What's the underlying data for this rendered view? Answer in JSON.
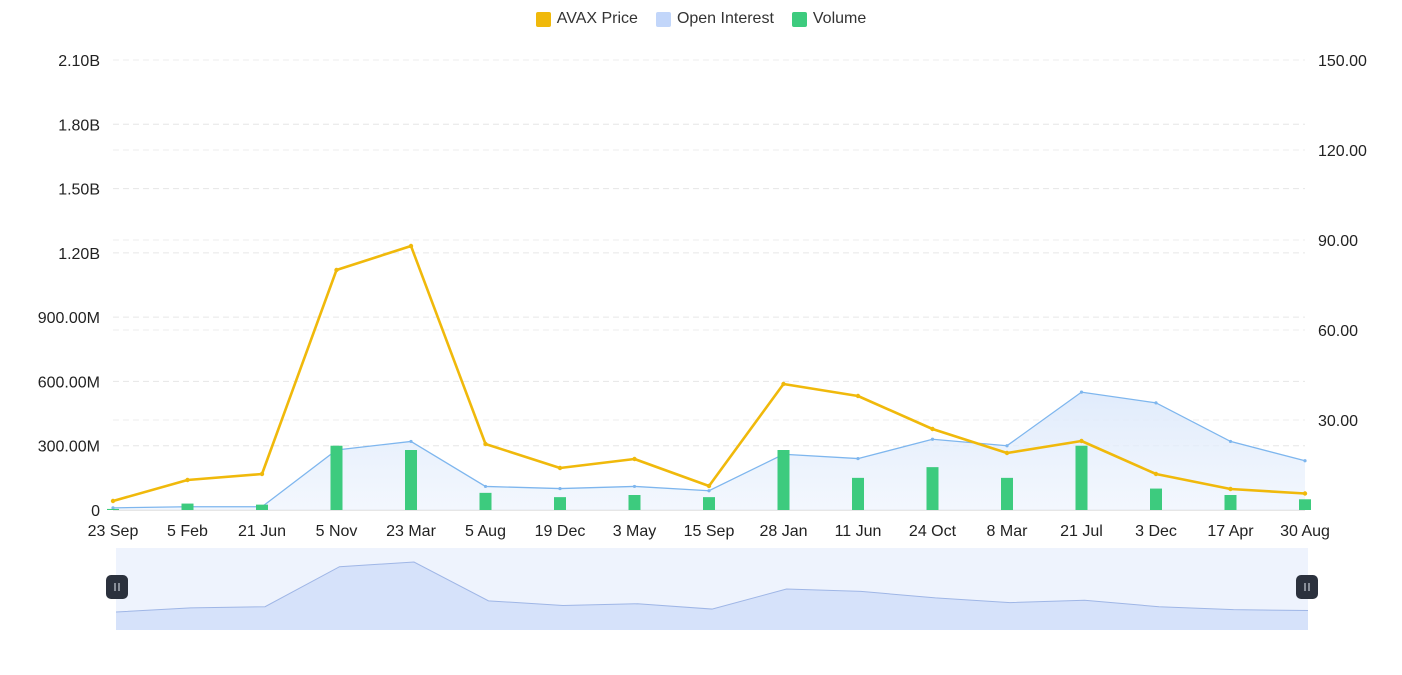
{
  "legend": {
    "items": [
      {
        "label": "AVAX Price",
        "color": "#F0B90B"
      },
      {
        "label": "Open Interest",
        "color": "#C2D6FA"
      },
      {
        "label": "Volume",
        "color": "#3DCB7E"
      }
    ]
  },
  "chart_data": {
    "type": "line",
    "title": "",
    "xlabel": "",
    "ylabel": "",
    "x_ticks": [
      "23 Sep",
      "5 Feb",
      "21 Jun",
      "5 Nov",
      "23 Mar",
      "5 Aug",
      "19 Dec",
      "3 May",
      "15 Sep",
      "28 Jan",
      "11 Jun",
      "24 Oct",
      "8 Mar",
      "21 Jul",
      "3 Dec",
      "17 Apr",
      "30 Aug"
    ],
    "y_left_ticks": [
      "0",
      "300.00M",
      "600.00M",
      "900.00M",
      "1.20B",
      "1.50B",
      "1.80B",
      "2.10B"
    ],
    "y_left_range": [
      0,
      2100000000
    ],
    "y_right_ticks": [
      "30.00",
      "60.00",
      "90.00",
      "120.00",
      "150.00"
    ],
    "y_right_range": [
      0,
      150
    ],
    "legend_position": "top-center",
    "grid": true,
    "series": [
      {
        "name": "AVAX Price",
        "axis": "right",
        "color": "#F0B90B",
        "x": [
          "23 Sep",
          "5 Feb",
          "21 Jun",
          "5 Nov",
          "23 Mar",
          "5 Aug",
          "19 Dec",
          "3 May",
          "15 Sep",
          "28 Jan",
          "11 Jun",
          "24 Oct",
          "8 Mar",
          "21 Jul",
          "3 Dec",
          "17 Apr",
          "30 Aug"
        ],
        "values": [
          3,
          10,
          12,
          80,
          88,
          22,
          14,
          17,
          8,
          42,
          38,
          27,
          19,
          23,
          12,
          7,
          5.5
        ]
      },
      {
        "name": "Open Interest",
        "axis": "left",
        "color": "#7EB6EE",
        "x": [
          "23 Sep",
          "5 Feb",
          "21 Jun",
          "5 Nov",
          "23 Mar",
          "5 Aug",
          "19 Dec",
          "3 May",
          "15 Sep",
          "28 Jan",
          "11 Jun",
          "24 Oct",
          "8 Mar",
          "21 Jul",
          "3 Dec",
          "17 Apr",
          "30 Aug"
        ],
        "values": [
          10000000,
          15000000,
          15000000,
          280000000,
          320000000,
          110000000,
          100000000,
          110000000,
          90000000,
          260000000,
          240000000,
          330000000,
          300000000,
          550000000,
          500000000,
          320000000,
          230000000
        ]
      },
      {
        "name": "Volume",
        "axis": "left",
        "color": "#3DCB7E",
        "x": [
          "23 Sep",
          "5 Feb",
          "21 Jun",
          "5 Nov",
          "23 Mar",
          "5 Aug",
          "19 Dec",
          "3 May",
          "15 Sep",
          "28 Jan",
          "11 Jun",
          "24 Oct",
          "8 Mar",
          "21 Jul",
          "3 Dec",
          "17 Apr",
          "30 Aug"
        ],
        "values": [
          5000000,
          30000000,
          25000000,
          300000000,
          280000000,
          80000000,
          60000000,
          70000000,
          60000000,
          280000000,
          150000000,
          200000000,
          150000000,
          300000000,
          100000000,
          70000000,
          50000000
        ]
      }
    ]
  }
}
